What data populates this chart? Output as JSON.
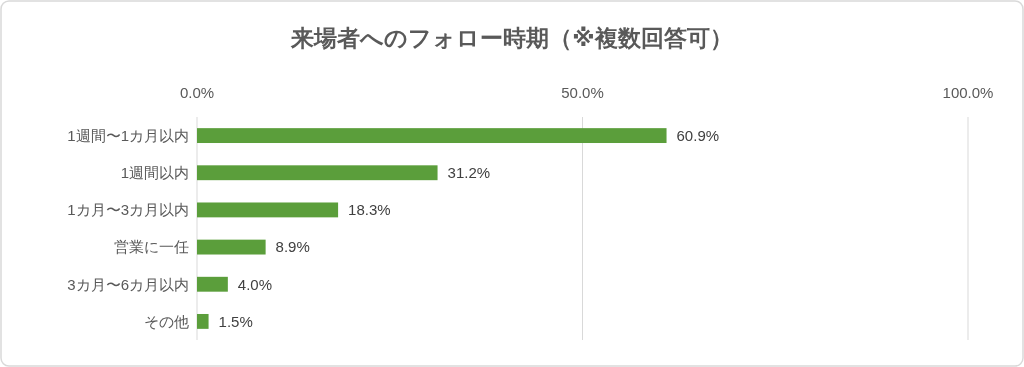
{
  "chart_data": {
    "type": "bar",
    "orientation": "horizontal",
    "title": "来場者へのフォロー時期（※複数回答可）",
    "categories": [
      "1週間〜1カ月以内",
      "1週間以内",
      "1カ月〜3カ月以内",
      "営業に一任",
      "3カ月〜6カ月以内",
      "その他"
    ],
    "values": [
      60.9,
      31.2,
      18.3,
      8.9,
      4.0,
      1.5
    ],
    "value_labels": [
      "60.9%",
      "31.2%",
      "18.3%",
      "8.9%",
      "4.0%",
      "1.5%"
    ],
    "color": "#5b9e3b",
    "xlim": [
      0,
      100
    ],
    "xticks": [
      {
        "value": 0,
        "label": "0.0%"
      },
      {
        "value": 50,
        "label": "50.0%"
      },
      {
        "value": 100,
        "label": "100.0%"
      }
    ],
    "grid": "x"
  }
}
